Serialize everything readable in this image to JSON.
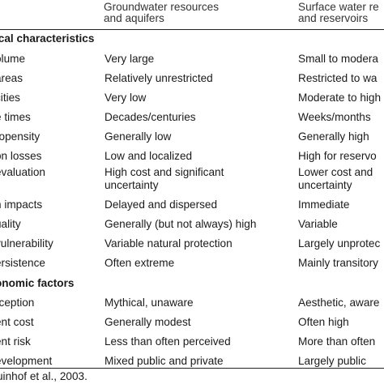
{
  "header": {
    "groundwater_line1": "Groundwater resources",
    "groundwater_line2": "and aquifers",
    "surface_line1": "Surface water re",
    "surface_line2": "and reservoirs"
  },
  "sections": [
    {
      "title": "ical characteristics",
      "rows": [
        {
          "label": "olume",
          "groundwater": "Very large",
          "surface": "Small to modera"
        },
        {
          "label": "areas",
          "groundwater": "Relatively unrestricted",
          "surface": "Restricted to wa"
        },
        {
          "label": "cities",
          "groundwater": "Very low",
          "surface": "Moderate to high"
        },
        {
          "label": "e times",
          "groundwater": "Decades/centuries",
          "surface": "Weeks/months"
        },
        {
          "label": "ropensity",
          "groundwater": "Generally low",
          "surface": "Generally high"
        },
        {
          "label": "on losses",
          "groundwater": "Low and localized",
          "surface": "High for reservo"
        },
        {
          "label": "evaluation",
          "groundwater": "High cost and significant",
          "groundwater2": "uncertainty",
          "surface": "Lower cost and",
          "surface2": "uncertainty"
        },
        {
          "label": "n impacts",
          "groundwater": "Delayed and dispersed",
          "surface": "Immediate"
        },
        {
          "label": "uality",
          "groundwater": "Generally (but not always) high",
          "surface": "Variable"
        },
        {
          "label": "vulnerability",
          "groundwater": "Variable natural protection",
          "surface": "Largely unprotec"
        },
        {
          "label": "ersistence",
          "groundwater": "Often extreme",
          "surface": "Mainly transitory"
        }
      ]
    },
    {
      "title": "onomic factors",
      "rows": [
        {
          "label": "rception",
          "groundwater": "Mythical, unaware",
          "surface": "Aesthetic, aware"
        },
        {
          "label": "ent cost",
          "groundwater": "Generally modest",
          "surface": "Often high"
        },
        {
          "label": "ent risk",
          "groundwater": "Less than often perceived",
          "surface": "More than often"
        },
        {
          "label": "evelopment",
          "groundwater": "Mixed public and private",
          "surface": "Largely public"
        }
      ]
    }
  ],
  "footnote": "uinhof et al., 2003."
}
